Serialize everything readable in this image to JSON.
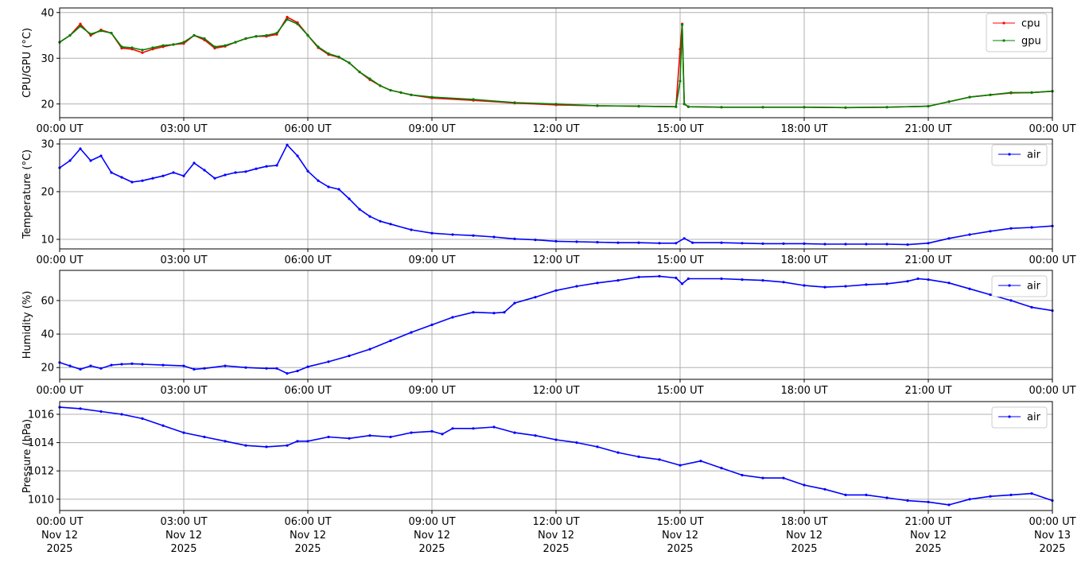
{
  "colors": {
    "cpu": "#ff0000",
    "gpu": "#008000",
    "air": "#0000ff",
    "grid": "#b0b0b0",
    "legend_border": "#cccccc"
  },
  "x_ticks": [
    "00:00 UT",
    "03:00 UT",
    "06:00 UT",
    "09:00 UT",
    "12:00 UT",
    "15:00 UT",
    "18:00 UT",
    "21:00 UT",
    "00:00 UT"
  ],
  "x_date_lines": [
    [
      "Nov 12",
      "2025"
    ],
    [
      "Nov 12",
      "2025"
    ],
    [
      "Nov 12",
      "2025"
    ],
    [
      "Nov 12",
      "2025"
    ],
    [
      "Nov 12",
      "2025"
    ],
    [
      "Nov 12",
      "2025"
    ],
    [
      "Nov 12",
      "2025"
    ],
    [
      "Nov 12",
      "2025"
    ],
    [
      "Nov 13",
      "2025"
    ]
  ],
  "chart_data": [
    {
      "type": "line",
      "ylabel": "CPU/GPU (°C)",
      "x_unit": "hours since 00:00 UT Nov 12 2025",
      "xlim": [
        0,
        24
      ],
      "ylim": [
        17,
        41
      ],
      "yticks": [
        20,
        30,
        40
      ],
      "grid": true,
      "legend": "top-right",
      "series": [
        {
          "name": "cpu",
          "color": "#ff0000",
          "x": [
            0,
            0.25,
            0.5,
            0.75,
            1,
            1.25,
            1.5,
            1.75,
            2,
            2.25,
            2.5,
            2.75,
            3,
            3.25,
            3.5,
            3.75,
            4,
            4.25,
            4.5,
            4.75,
            5,
            5.25,
            5.5,
            5.75,
            6,
            6.25,
            6.5,
            6.75,
            7,
            7.25,
            7.5,
            7.75,
            8,
            8.25,
            8.5,
            9,
            10,
            11,
            12,
            13,
            14,
            14.9,
            15,
            15.05,
            15.1,
            15.2,
            16,
            17,
            18,
            19,
            20,
            21,
            21.5,
            22,
            22.5,
            23,
            23.5,
            24
          ],
          "y": [
            33.5,
            35,
            37.5,
            35,
            36.2,
            35.5,
            32.2,
            32,
            31.2,
            32,
            32.5,
            33,
            33.2,
            35,
            34,
            32.2,
            32.6,
            33.5,
            34.3,
            34.8,
            34.8,
            35.2,
            39,
            37.8,
            35,
            32.3,
            30.8,
            30.2,
            29,
            27,
            25.3,
            24,
            23,
            22.5,
            22,
            21.3,
            20.8,
            20.2,
            19.8,
            19.6,
            19.5,
            19.4,
            32,
            37.5,
            20,
            19.4,
            19.3,
            19.3,
            19.3,
            19.2,
            19.3,
            19.5,
            20.5,
            21.5,
            22,
            22.4,
            22.5,
            22.8
          ]
        },
        {
          "name": "gpu",
          "color": "#008000",
          "x": [
            0,
            0.25,
            0.5,
            0.75,
            1,
            1.25,
            1.5,
            1.75,
            2,
            2.25,
            2.5,
            2.75,
            3,
            3.25,
            3.5,
            3.75,
            4,
            4.25,
            4.5,
            4.75,
            5,
            5.25,
            5.5,
            5.75,
            6,
            6.25,
            6.5,
            6.75,
            7,
            7.25,
            7.5,
            7.75,
            8,
            8.25,
            8.5,
            9,
            10,
            11,
            12,
            13,
            14,
            14.9,
            15,
            15.05,
            15.1,
            15.2,
            16,
            17,
            18,
            19,
            20,
            21,
            21.5,
            22,
            22.5,
            23,
            23.5,
            24
          ],
          "y": [
            33.5,
            35,
            37,
            35.3,
            36,
            35.5,
            32.5,
            32.3,
            31.8,
            32.3,
            32.8,
            33,
            33.5,
            35,
            34.3,
            32.5,
            32.8,
            33.5,
            34.3,
            34.8,
            35,
            35.5,
            38.5,
            37.5,
            35,
            32.5,
            31,
            30.3,
            29,
            27,
            25.5,
            24,
            23,
            22.5,
            22,
            21.5,
            21,
            20.3,
            20,
            19.6,
            19.5,
            19.4,
            25,
            37.3,
            20,
            19.4,
            19.3,
            19.3,
            19.3,
            19.2,
            19.3,
            19.5,
            20.5,
            21.5,
            22,
            22.5,
            22.5,
            22.8
          ]
        }
      ]
    },
    {
      "type": "line",
      "ylabel": "Temperature (°C)",
      "x_unit": "hours since 00:00 UT Nov 12 2025",
      "xlim": [
        0,
        24
      ],
      "ylim": [
        8,
        31
      ],
      "yticks": [
        10,
        20,
        30
      ],
      "grid": true,
      "legend": "top-right",
      "series": [
        {
          "name": "air",
          "color": "#0000ff",
          "x": [
            0,
            0.25,
            0.5,
            0.75,
            1,
            1.25,
            1.5,
            1.75,
            2,
            2.25,
            2.5,
            2.75,
            3,
            3.25,
            3.5,
            3.75,
            4,
            4.25,
            4.5,
            4.75,
            5,
            5.25,
            5.5,
            5.75,
            6,
            6.25,
            6.5,
            6.75,
            7,
            7.25,
            7.5,
            7.75,
            8,
            8.5,
            9,
            9.5,
            10,
            10.5,
            11,
            11.5,
            12,
            12.5,
            13,
            13.5,
            14,
            14.5,
            14.9,
            15.1,
            15.3,
            16,
            16.5,
            17,
            17.5,
            18,
            18.5,
            19,
            19.5,
            20,
            20.5,
            21,
            21.5,
            22,
            22.5,
            23,
            23.5,
            24
          ],
          "y": [
            25,
            26.5,
            29,
            26.5,
            27.5,
            24,
            23,
            22,
            22.3,
            22.8,
            23.3,
            24,
            23.3,
            26,
            24.5,
            22.8,
            23.5,
            24,
            24.2,
            24.8,
            25.3,
            25.5,
            29.8,
            27.5,
            24.3,
            22.3,
            21,
            20.5,
            18.5,
            16.3,
            14.8,
            13.8,
            13.2,
            12,
            11.3,
            11,
            10.8,
            10.5,
            10.1,
            9.9,
            9.6,
            9.5,
            9.4,
            9.3,
            9.3,
            9.2,
            9.2,
            10.2,
            9.3,
            9.3,
            9.2,
            9.1,
            9.1,
            9.1,
            9.0,
            9.0,
            9.0,
            9.0,
            8.9,
            9.2,
            10.2,
            11,
            11.7,
            12.3,
            12.5,
            12.8
          ]
        }
      ]
    },
    {
      "type": "line",
      "ylabel": "Humidity (%)",
      "x_unit": "hours since 00:00 UT Nov 12 2025",
      "xlim": [
        0,
        24
      ],
      "ylim": [
        13,
        78
      ],
      "yticks": [
        20,
        40,
        60
      ],
      "grid": true,
      "legend": "top-right",
      "series": [
        {
          "name": "air",
          "color": "#0000ff",
          "x": [
            0,
            0.25,
            0.5,
            0.75,
            1,
            1.25,
            1.5,
            1.75,
            2,
            2.5,
            3,
            3.25,
            3.5,
            4,
            4.5,
            5,
            5.25,
            5.5,
            5.75,
            6,
            6.5,
            7,
            7.5,
            8,
            8.5,
            9,
            9.5,
            10,
            10.5,
            10.75,
            11,
            11.5,
            12,
            12.5,
            13,
            13.5,
            14,
            14.5,
            14.9,
            15.05,
            15.2,
            16,
            16.5,
            17,
            17.5,
            18,
            18.5,
            19,
            19.5,
            20,
            20.5,
            20.75,
            21,
            21.5,
            22,
            22.5,
            23,
            23.5,
            24
          ],
          "y": [
            23,
            21,
            19,
            21,
            19.5,
            21.5,
            22,
            22.3,
            22,
            21.5,
            21,
            19,
            19.5,
            21,
            20,
            19.5,
            19.5,
            16.5,
            18,
            20.5,
            23.5,
            27,
            31,
            36,
            41,
            45.5,
            50,
            53,
            52.5,
            53,
            58.5,
            62,
            66,
            68.5,
            70.5,
            72,
            74,
            74.5,
            73.5,
            70,
            73,
            73,
            72.5,
            72,
            71,
            69,
            68,
            68.5,
            69.5,
            70,
            71.5,
            73,
            72.5,
            70.5,
            67,
            63.5,
            60,
            56,
            54
          ]
        }
      ]
    },
    {
      "type": "line",
      "ylabel": "Pressure (hPa)",
      "x_unit": "hours since 00:00 UT Nov 12 2025",
      "xlim": [
        0,
        24
      ],
      "ylim": [
        1009.2,
        1016.9
      ],
      "yticks": [
        1010,
        1012,
        1014,
        1016
      ],
      "grid": true,
      "legend": "top-right",
      "series": [
        {
          "name": "air",
          "color": "#0000ff",
          "x": [
            0,
            0.5,
            1,
            1.5,
            2,
            2.5,
            3,
            3.5,
            4,
            4.5,
            5,
            5.5,
            5.75,
            6,
            6.5,
            7,
            7.5,
            8,
            8.5,
            9,
            9.25,
            9.5,
            10,
            10.5,
            11,
            11.5,
            12,
            12.5,
            13,
            13.5,
            14,
            14.5,
            15,
            15.5,
            16,
            16.5,
            17,
            17.5,
            18,
            18.5,
            19,
            19.5,
            20,
            20.5,
            21,
            21.5,
            22,
            22.5,
            23,
            23.5,
            24
          ],
          "y": [
            1016.5,
            1016.4,
            1016.2,
            1016.0,
            1015.7,
            1015.2,
            1014.7,
            1014.4,
            1014.1,
            1013.8,
            1013.7,
            1013.8,
            1014.1,
            1014.1,
            1014.4,
            1014.3,
            1014.5,
            1014.4,
            1014.7,
            1014.8,
            1014.6,
            1015.0,
            1015.0,
            1015.1,
            1014.7,
            1014.5,
            1014.2,
            1014.0,
            1013.7,
            1013.3,
            1013.0,
            1012.8,
            1012.4,
            1012.7,
            1012.2,
            1011.7,
            1011.5,
            1011.5,
            1011.0,
            1010.7,
            1010.3,
            1010.3,
            1010.1,
            1009.9,
            1009.8,
            1009.6,
            1010.0,
            1010.2,
            1010.3,
            1010.4,
            1009.9
          ]
        }
      ]
    }
  ]
}
